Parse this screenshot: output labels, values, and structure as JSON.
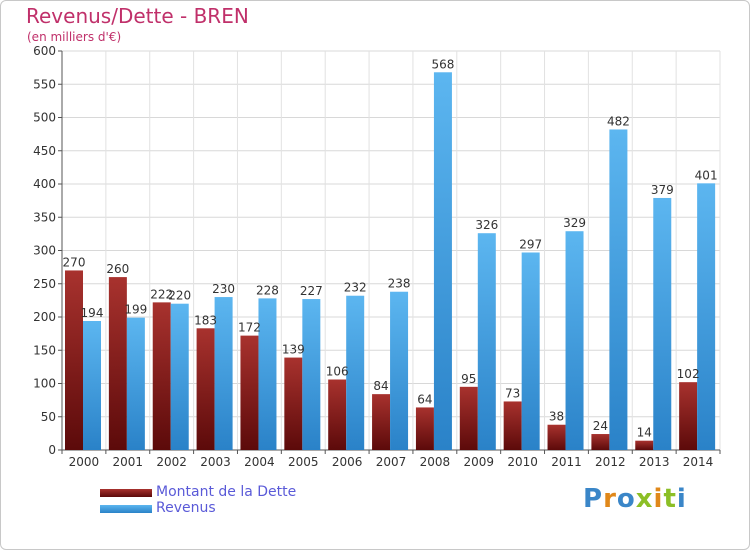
{
  "chart_data": {
    "type": "bar",
    "title": "Revenus/Dette - BREN",
    "subtitle": "(en milliers d'€)",
    "xlabel": "",
    "ylabel": "",
    "ylim": [
      0,
      600
    ],
    "yticks": [
      0,
      50,
      100,
      150,
      200,
      250,
      300,
      350,
      400,
      450,
      500,
      550,
      600
    ],
    "grid": true,
    "legend_position": "bottom-left",
    "categories": [
      "2000",
      "2001",
      "2002",
      "2003",
      "2004",
      "2005",
      "2006",
      "2007",
      "2008",
      "2009",
      "2010",
      "2011",
      "2012",
      "2013",
      "2014"
    ],
    "series": [
      {
        "name": "Montant de la Dette",
        "color": "#8b1a1a",
        "values": [
          270,
          260,
          222,
          183,
          172,
          139,
          106,
          84,
          64,
          95,
          73,
          38,
          24,
          14,
          102
        ]
      },
      {
        "name": "Revenus",
        "color": "#3a9be0",
        "values": [
          194,
          199,
          220,
          230,
          228,
          227,
          232,
          238,
          568,
          326,
          297,
          329,
          482,
          379,
          401
        ]
      }
    ]
  },
  "branding": {
    "logo_text": "Proxiti",
    "logo_colors": [
      "#3a86c8",
      "#e0881a",
      "#3a86c8",
      "#8cbf26",
      "#e0881a",
      "#8cbf26",
      "#3a86c8"
    ]
  }
}
